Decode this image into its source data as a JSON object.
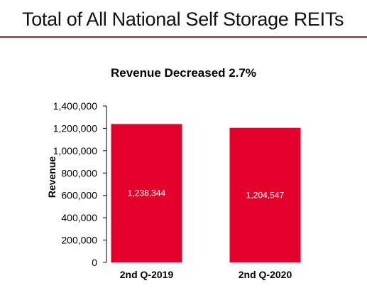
{
  "slide": {
    "title": "Total of All National Self Storage REITs",
    "accent_color": "#c8102e"
  },
  "chart_data": {
    "type": "bar",
    "title": "Revenue Decreased 2.7%",
    "xlabel": "",
    "ylabel": "Revenue",
    "categories": [
      "2nd Q-2019",
      "2nd Q-2020"
    ],
    "values": [
      1238344,
      1204547
    ],
    "data_labels": [
      "1,238,344",
      "1,204,547"
    ],
    "ylim": [
      0,
      1400000
    ],
    "y_ticks": [
      0,
      200000,
      400000,
      600000,
      800000,
      1000000,
      1200000,
      1400000
    ],
    "y_tick_labels": [
      "0",
      "200,000",
      "400,000",
      "600,000",
      "800,000",
      "1,000,000",
      "1,200,000",
      "1,400,000"
    ],
    "bar_color": "#e4002b",
    "grid": false,
    "legend": "none"
  }
}
